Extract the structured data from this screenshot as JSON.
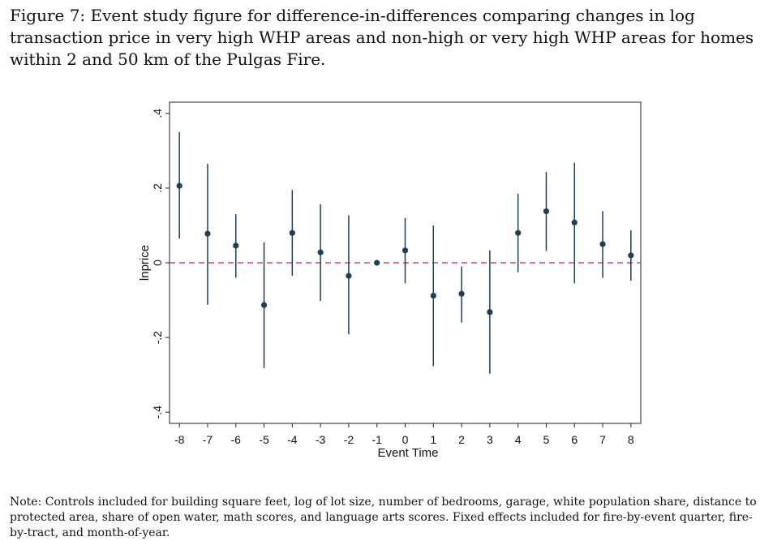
{
  "caption": "Figure 7: Event study figure for difference-in-differences comparing changes in log transaction price in very high WHP areas and non-high or very high WHP areas for homes within 2 and 50 km of the Pulgas Fire.",
  "note": "Note: Controls included for building square feet, log of lot size, number of bedrooms, garage, white population share, distance to protected area, share of open water, math scores, and language arts scores. Fixed effects included for fire-by-event quarter, fire-by-tract, and month-of-year.",
  "chart_data": {
    "type": "scatter",
    "subtype": "coefficient plot with confidence intervals",
    "xlabel": "Event Time",
    "ylabel": "lnprice",
    "x_ticks": [
      "-8",
      "-7",
      "-6",
      "-5",
      "-4",
      "-3",
      "-2",
      "-1",
      "0",
      "1",
      "2",
      "3",
      "4",
      "5",
      "6",
      "7",
      "8"
    ],
    "y_ticks": [
      "-.4",
      "-.2",
      "0",
      ".2",
      ".4"
    ],
    "y_tick_values": [
      -0.4,
      -0.2,
      0,
      0.2,
      0.4
    ],
    "ylim": [
      -0.43,
      0.43
    ],
    "xlim": [
      -8.35,
      8.35
    ],
    "x": [
      -8,
      -7,
      -6,
      -5,
      -4,
      -3,
      -2,
      -1,
      0,
      1,
      2,
      3,
      4,
      5,
      6,
      7,
      8
    ],
    "y": [
      0.206,
      0.078,
      0.046,
      -0.113,
      0.08,
      0.028,
      -0.035,
      0.0,
      0.033,
      -0.088,
      -0.083,
      -0.132,
      0.08,
      0.138,
      0.108,
      0.05,
      0.02
    ],
    "ci_low": [
      0.065,
      -0.112,
      -0.04,
      -0.282,
      -0.035,
      -0.102,
      -0.192,
      0.0,
      -0.055,
      -0.277,
      -0.16,
      -0.297,
      -0.025,
      0.032,
      -0.055,
      -0.04,
      -0.048
    ],
    "ci_high": [
      0.35,
      0.265,
      0.13,
      0.055,
      0.195,
      0.157,
      0.127,
      0.0,
      0.12,
      0.1,
      -0.01,
      0.033,
      0.185,
      0.243,
      0.268,
      0.138,
      0.087
    ],
    "reference_line": {
      "y": 0,
      "style": "dashed",
      "color": "#c8254f"
    },
    "marker_color": "#1e3f58",
    "grid": false,
    "legend": "none"
  }
}
